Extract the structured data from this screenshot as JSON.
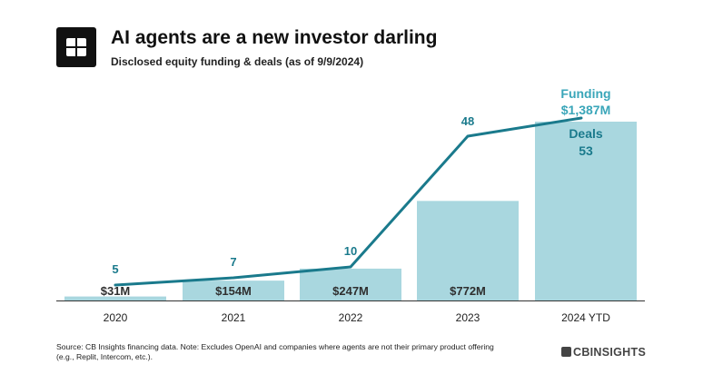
{
  "header": {
    "title": "AI agents are a new investor darling",
    "subtitle": "Disclosed equity funding & deals (as of 9/9/2024)"
  },
  "chart_data": {
    "type": "bar",
    "title": "AI agents are a new investor darling",
    "subtitle": "Disclosed equity funding & deals (as of 9/9/2024)",
    "categories": [
      "2020",
      "2021",
      "2022",
      "2023",
      "2024 YTD"
    ],
    "series": [
      {
        "name": "Funding",
        "type": "bar",
        "values": [
          31,
          154,
          247,
          772,
          1387
        ],
        "labels": [
          "$31M",
          "$154M",
          "$247M",
          "$772M",
          "$1,387M"
        ],
        "color": "#a9d7df"
      },
      {
        "name": "Deals",
        "type": "line",
        "values": [
          5,
          7,
          10,
          48,
          53
        ],
        "labels": [
          "5",
          "7",
          "10",
          "48",
          "53"
        ],
        "color": "#1a7a8c"
      }
    ],
    "legend_labels": {
      "funding": "Funding",
      "deals": "Deals"
    },
    "grid": false,
    "legend": "inline"
  },
  "footer": {
    "source": "Source: CB Insights financing data. Note: Excludes OpenAI and companies where agents are not their primary product offering (e.g., Replit, Intercom, etc.).",
    "brand": "CBINSIGHTS"
  },
  "colors": {
    "bar": "#a9d7df",
    "line": "#1a7a8c",
    "legend": "#3aa6b9",
    "bar_label": "#2f2f2f"
  },
  "icons": {
    "logo": "cb-logo-icon"
  }
}
